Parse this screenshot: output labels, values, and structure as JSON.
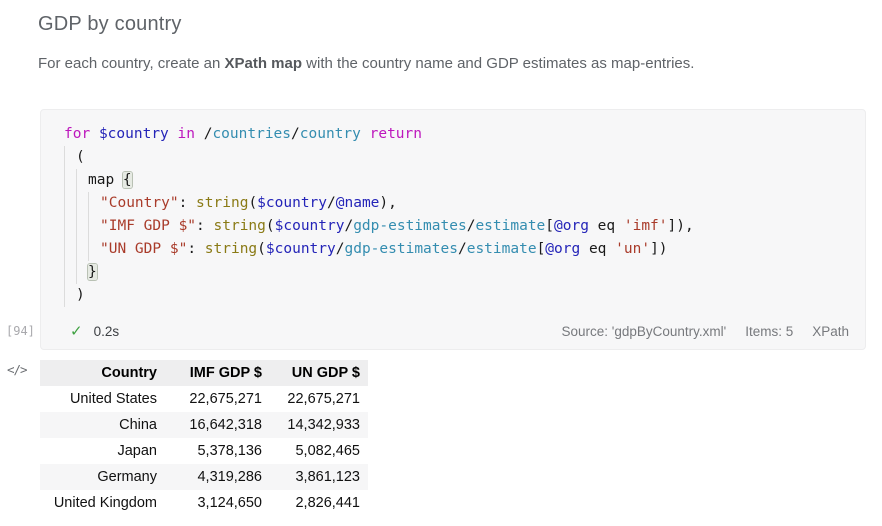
{
  "page": {
    "title": "GDP by country",
    "subtitle_prefix": "For each country, create an ",
    "subtitle_bold": "XPath map",
    "subtitle_suffix": " with the country name and GDP estimates as map-entries."
  },
  "editor": {
    "execution_label": "[94]",
    "status": {
      "check": "✓",
      "duration": "0.2s"
    },
    "meta": {
      "source": "Source: 'gdpByCountry.xml'",
      "items": "Items: 5",
      "language": "XPath"
    },
    "code_lines": [
      {
        "indent": 0,
        "tokens": [
          {
            "t": "for",
            "c": "kw"
          },
          {
            "t": " ",
            "c": "pl"
          },
          {
            "t": "$country",
            "c": "var"
          },
          {
            "t": " ",
            "c": "pl"
          },
          {
            "t": "in",
            "c": "kw"
          },
          {
            "t": " ",
            "c": "pl"
          },
          {
            "t": "/",
            "c": "pl"
          },
          {
            "t": "countries",
            "c": "path"
          },
          {
            "t": "/",
            "c": "pl"
          },
          {
            "t": "country",
            "c": "path"
          },
          {
            "t": " ",
            "c": "pl"
          },
          {
            "t": "return",
            "c": "kw"
          }
        ]
      },
      {
        "indent": 1,
        "tokens": [
          {
            "t": "(",
            "c": "pl"
          }
        ]
      },
      {
        "indent": 2,
        "tokens": [
          {
            "t": "map ",
            "c": "pl"
          },
          {
            "t": "{",
            "c": "pl",
            "h": true
          }
        ]
      },
      {
        "indent": 3,
        "tokens": [
          {
            "t": "\"Country\"",
            "c": "str"
          },
          {
            "t": ": ",
            "c": "pl"
          },
          {
            "t": "string",
            "c": "fn"
          },
          {
            "t": "(",
            "c": "pl"
          },
          {
            "t": "$country",
            "c": "var"
          },
          {
            "t": "/",
            "c": "pl"
          },
          {
            "t": "@name",
            "c": "attr"
          },
          {
            "t": "),",
            "c": "pl"
          }
        ]
      },
      {
        "indent": 3,
        "tokens": [
          {
            "t": "\"IMF GDP $\"",
            "c": "str"
          },
          {
            "t": ": ",
            "c": "pl"
          },
          {
            "t": "string",
            "c": "fn"
          },
          {
            "t": "(",
            "c": "pl"
          },
          {
            "t": "$country",
            "c": "var"
          },
          {
            "t": "/",
            "c": "pl"
          },
          {
            "t": "gdp-estimates",
            "c": "path"
          },
          {
            "t": "/",
            "c": "pl"
          },
          {
            "t": "estimate",
            "c": "path"
          },
          {
            "t": "[",
            "c": "pl"
          },
          {
            "t": "@org",
            "c": "attr"
          },
          {
            "t": " eq ",
            "c": "pl"
          },
          {
            "t": "'imf'",
            "c": "str"
          },
          {
            "t": "]),",
            "c": "pl"
          }
        ]
      },
      {
        "indent": 3,
        "tokens": [
          {
            "t": "\"UN GDP $\"",
            "c": "str"
          },
          {
            "t": ": ",
            "c": "pl"
          },
          {
            "t": "string",
            "c": "fn"
          },
          {
            "t": "(",
            "c": "pl"
          },
          {
            "t": "$country",
            "c": "var"
          },
          {
            "t": "/",
            "c": "pl"
          },
          {
            "t": "gdp-estimates",
            "c": "path"
          },
          {
            "t": "/",
            "c": "pl"
          },
          {
            "t": "estimate",
            "c": "path"
          },
          {
            "t": "[",
            "c": "pl"
          },
          {
            "t": "@org",
            "c": "attr"
          },
          {
            "t": " eq ",
            "c": "pl"
          },
          {
            "t": "'un'",
            "c": "str"
          },
          {
            "t": "])",
            "c": "pl"
          }
        ]
      },
      {
        "indent": 2,
        "tokens": [
          {
            "t": "}",
            "c": "pl",
            "h": true
          }
        ]
      },
      {
        "indent": 1,
        "tokens": [
          {
            "t": ")",
            "c": "pl"
          }
        ]
      }
    ]
  },
  "result": {
    "code_view_icon": "</>",
    "table": {
      "headers": [
        "Country",
        "IMF GDP $",
        "UN GDP $"
      ],
      "rows": [
        [
          "United States",
          "22,675,271",
          "22,675,271"
        ],
        [
          "China",
          "16,642,318",
          "14,342,933"
        ],
        [
          "Japan",
          "5,378,136",
          "5,082,465"
        ],
        [
          "Germany",
          "4,319,286",
          "3,861,123"
        ],
        [
          "United Kingdom",
          "3,124,650",
          "2,826,441"
        ]
      ]
    }
  },
  "colors": {
    "success_green": "#3fa142",
    "syntax_keyword": "#bd18bd",
    "syntax_variable": "#2424b8",
    "syntax_path": "#348db0",
    "syntax_string": "#a93b2a",
    "syntax_function": "#8a7a15",
    "code_background": "#f7f7f8",
    "table_header_bg": "#eeeeef",
    "table_stripe_bg": "#f6f6f7"
  }
}
